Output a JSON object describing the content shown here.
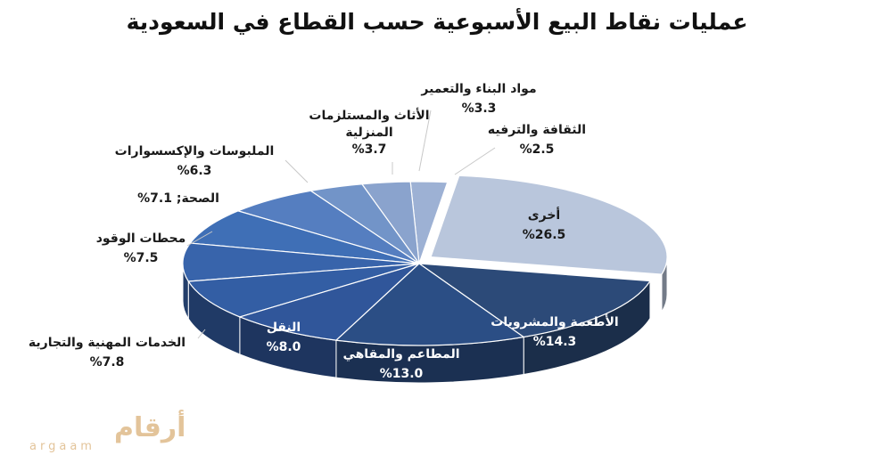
{
  "chart_data": {
    "type": "pie",
    "title": "عمليات نقاط البيع الأسبوعية حسب القطاع في السعودية",
    "slices": [
      {
        "name": "أخرى",
        "value": 26.5,
        "label": "%26.5",
        "color": "#b9c6dc"
      },
      {
        "name": "الأطعمة والمشروبات",
        "value": 14.3,
        "label": "%14.3",
        "color": "#2c4a78"
      },
      {
        "name": "المطاعم والمقاهي",
        "value": 13.0,
        "label": "%13.0",
        "color": "#2b4e85"
      },
      {
        "name": "النقل",
        "value": 8.0,
        "label": "%8.0",
        "color": "#30569a"
      },
      {
        "name": "الخدمات المهنية والتجارية",
        "value": 7.8,
        "label": "%7.8",
        "color": "#335ea4"
      },
      {
        "name": "محطات الوقود",
        "value": 7.5,
        "label": "%7.5",
        "color": "#3864ab"
      },
      {
        "name": "الصحة",
        "value": 7.1,
        "label": "الصحة; 7.1%",
        "color": "#3f6fb6"
      },
      {
        "name": "الملبوسات والإكسسوارات",
        "value": 6.3,
        "label": "%6.3",
        "color": "#557ec0"
      },
      {
        "name": "الأثاث والمستلزمات المنزلية",
        "value": 3.7,
        "label": "%3.7",
        "color": "#7294c8"
      },
      {
        "name": "مواد البناء والتعمير",
        "value": 3.3,
        "label": "%3.3",
        "color": "#8aa3cd"
      },
      {
        "name": "الثقافة والترفيه",
        "value": 2.5,
        "label": "%2.5",
        "color": "#9db1d4"
      }
    ],
    "label_lines": {
      "furniture": [
        "الأثاث والمستلزمات",
        "المنزلية"
      ]
    },
    "legend": "none"
  },
  "watermark": {
    "arabic": "أرقام",
    "latin": "argaam"
  }
}
